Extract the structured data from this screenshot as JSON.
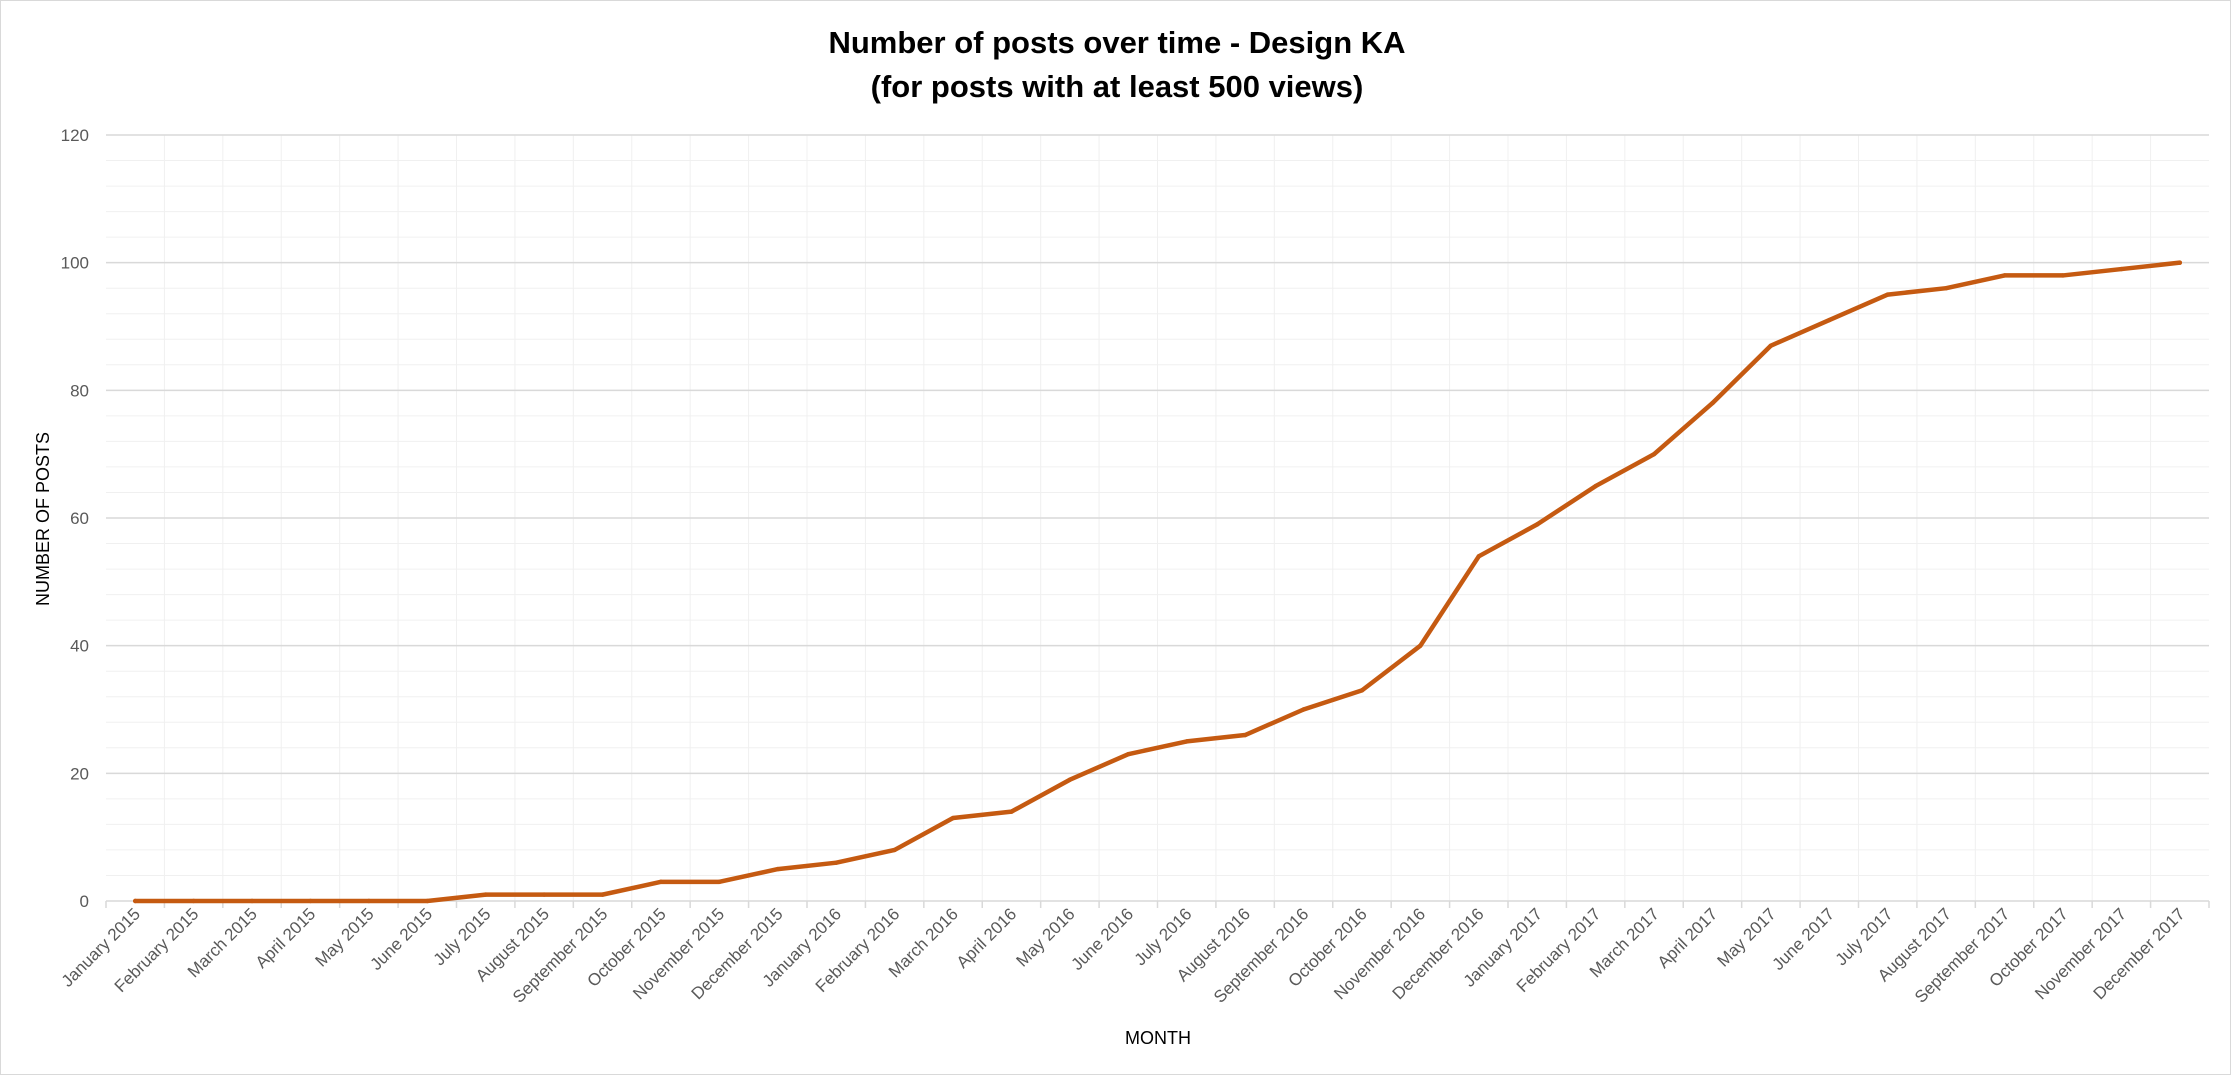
{
  "chart_data": {
    "type": "line",
    "title": "Number of posts over time - Design KA",
    "subtitle": "(for posts with at least 500 views)",
    "xlabel": "MONTH",
    "ylabel": "NUMBER OF POSTS",
    "ylim": [
      0,
      120
    ],
    "yticks": [
      "0",
      "20",
      "40",
      "60",
      "80",
      "100",
      "120"
    ],
    "grid": true,
    "legend": "none",
    "categories": [
      "January 2015",
      "February 2015",
      "March 2015",
      "April 2015",
      "May 2015",
      "June 2015",
      "July 2015",
      "August 2015",
      "September 2015",
      "October 2015",
      "November 2015",
      "December 2015",
      "January 2016",
      "February 2016",
      "March 2016",
      "April 2016",
      "May 2016",
      "June 2016",
      "July 2016",
      "August 2016",
      "September 2016",
      "October 2016",
      "November 2016",
      "December 2016",
      "January 2017",
      "February 2017",
      "March 2017",
      "April 2017",
      "May 2017",
      "June 2017",
      "July 2017",
      "August 2017",
      "September 2017",
      "October 2017",
      "November 2017",
      "December 2017"
    ],
    "series": [
      {
        "color": "#C55A11",
        "values": [
          0,
          0,
          0,
          0,
          0,
          0,
          1,
          1,
          1,
          3,
          3,
          5,
          6,
          8,
          13,
          14,
          19,
          23,
          25,
          26,
          30,
          33,
          40,
          54,
          59,
          65,
          70,
          78,
          87,
          91,
          95,
          96,
          98,
          98,
          99,
          100
        ]
      }
    ]
  }
}
